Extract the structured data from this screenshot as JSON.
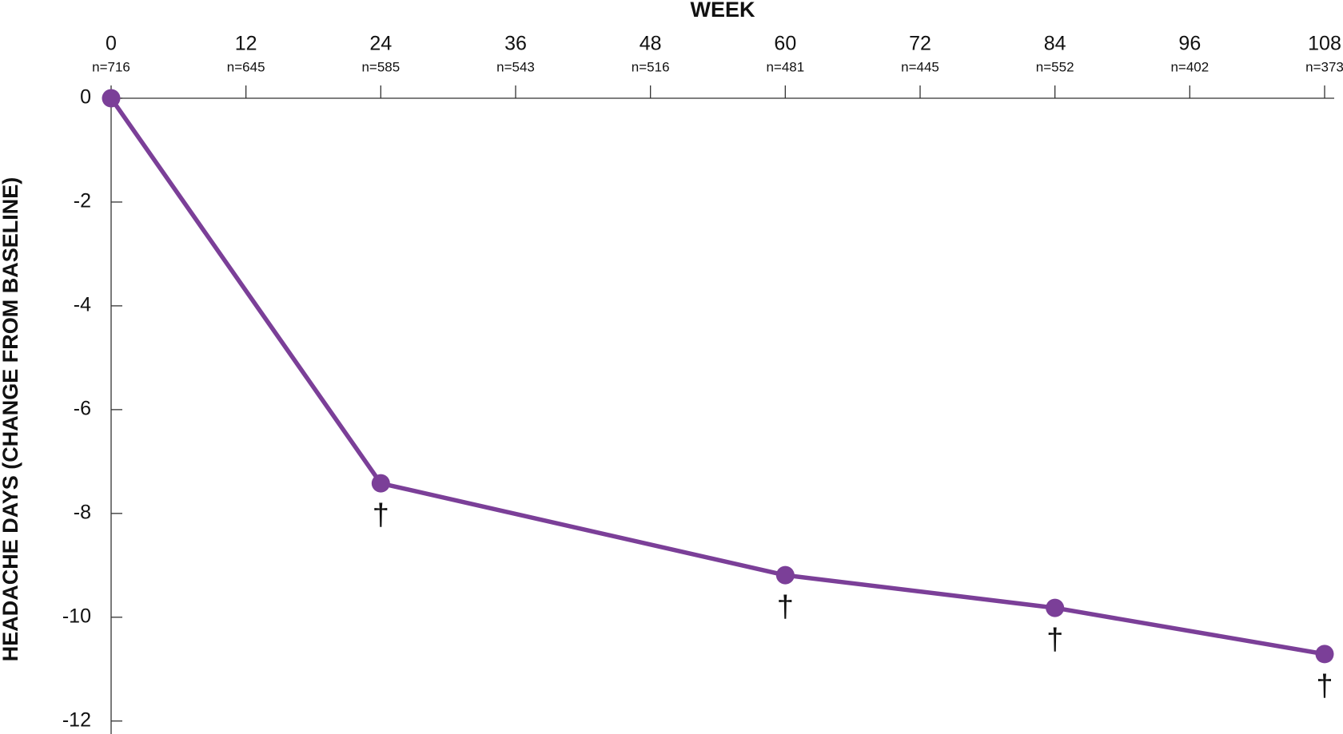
{
  "chart_data": {
    "type": "line",
    "x_label": "WEEK",
    "y_label": "HEADACHE DAYS (CHANGE FROM BASELINE)",
    "x": [
      0,
      24,
      60,
      84,
      108
    ],
    "series": [
      {
        "name": "Headache days",
        "color": "#7b3f98",
        "values": [
          0,
          -7.42,
          -9.19,
          -9.82,
          -10.71
        ]
      }
    ],
    "point_labels": [
      null,
      "†",
      "†",
      "†",
      "†"
    ],
    "xlim": [
      0,
      108
    ],
    "xticks": [
      0,
      12,
      24,
      36,
      48,
      60,
      72,
      84,
      96,
      108
    ],
    "sample_sizes": [
      "n=716",
      "n=645",
      "n=585",
      "n=543",
      "n=516",
      "n=481",
      "n=445",
      "n=552",
      "n=402",
      "n=373"
    ],
    "ylim": [
      -12.25,
      0
    ],
    "yticks": [
      0,
      -2,
      -4,
      -6,
      -8,
      -10,
      -12
    ]
  }
}
